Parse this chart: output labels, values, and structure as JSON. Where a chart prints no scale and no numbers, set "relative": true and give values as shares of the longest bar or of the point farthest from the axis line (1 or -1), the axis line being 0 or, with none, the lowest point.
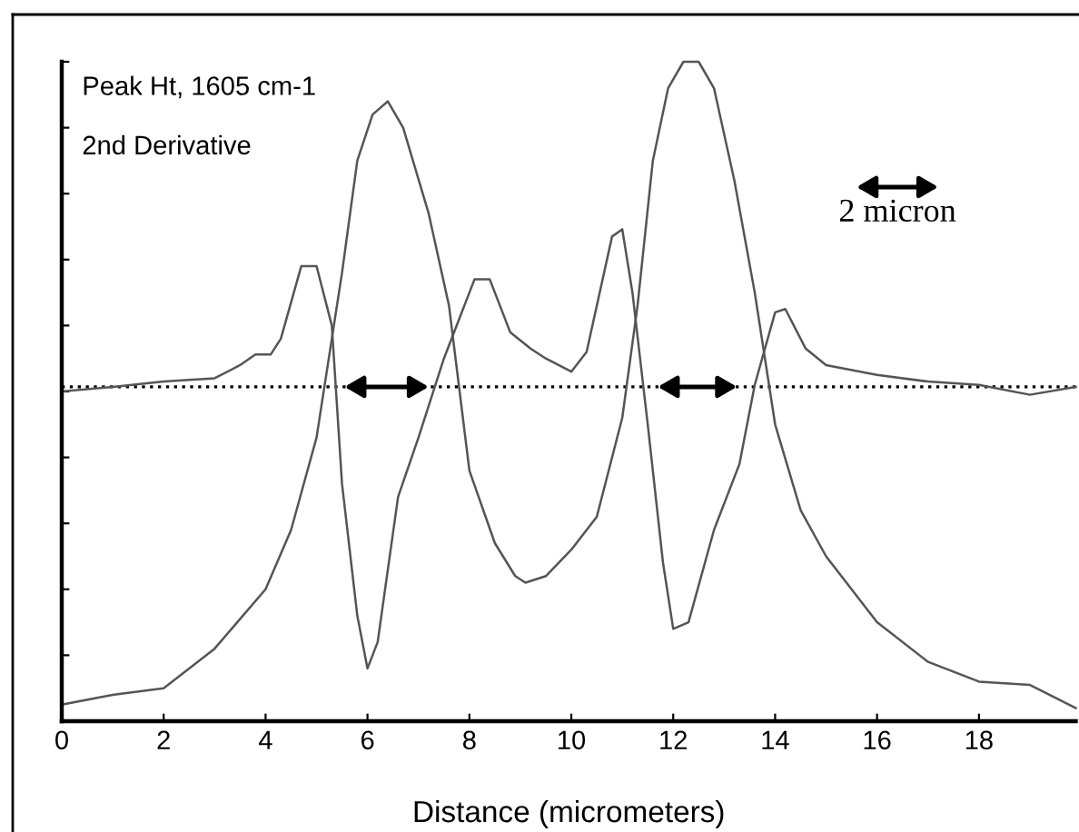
{
  "chart_data": {
    "type": "line",
    "relative": true,
    "xlabel": "Distance (micrometers)",
    "annotations": [
      "Peak Ht, 1605 cm-1",
      "2nd Derivative",
      "2 micron"
    ],
    "xlim": [
      0,
      19.9
    ],
    "xticks": [
      0,
      2,
      4,
      6,
      8,
      10,
      12,
      14,
      16,
      18
    ],
    "tick_labels": "x",
    "grid": false,
    "legend": false,
    "ref_lines": [
      {
        "axis": "y",
        "value": 0.507,
        "line_style": "dotted",
        "color": "#000000"
      }
    ],
    "series": [
      {
        "color": "#555555",
        "x": [
          0,
          1,
          2,
          3,
          4,
          4.5,
          5,
          5.5,
          5.8,
          6.1,
          6.4,
          6.7,
          7.2,
          7.6,
          8,
          8.5,
          8.9,
          9.1,
          9.5,
          10,
          10.5,
          11,
          11.3,
          11.6,
          11.9,
          12.2,
          12.5,
          12.8,
          13.2,
          13.6,
          14,
          14.5,
          15,
          16,
          17,
          18,
          19,
          19.9
        ],
        "values": [
          0.025,
          0.04,
          0.05,
          0.11,
          0.2,
          0.29,
          0.43,
          0.68,
          0.85,
          0.92,
          0.94,
          0.9,
          0.77,
          0.63,
          0.38,
          0.27,
          0.22,
          0.21,
          0.22,
          0.26,
          0.31,
          0.46,
          0.63,
          0.85,
          0.96,
          1.0,
          1.0,
          0.96,
          0.82,
          0.65,
          0.45,
          0.32,
          0.25,
          0.15,
          0.09,
          0.06,
          0.055,
          0.02
        ]
      },
      {
        "color": "#555555",
        "x": [
          0,
          1,
          2,
          3,
          3.5,
          3.8,
          4.1,
          4.3,
          4.7,
          5.0,
          5.3,
          5.5,
          5.8,
          6.0,
          6.2,
          6.6,
          7.0,
          7.5,
          7.9,
          8.1,
          8.4,
          8.8,
          9.2,
          9.5,
          10,
          10.3,
          10.8,
          11.0,
          11.2,
          11.5,
          11.8,
          12.0,
          12.3,
          12.8,
          13.3,
          13.6,
          14.0,
          14.2,
          14.6,
          15,
          16,
          17,
          18,
          19,
          19.9
        ],
        "values": [
          0.5,
          0.507,
          0.515,
          0.52,
          0.54,
          0.556,
          0.556,
          0.58,
          0.69,
          0.69,
          0.6,
          0.36,
          0.16,
          0.08,
          0.12,
          0.34,
          0.43,
          0.55,
          0.63,
          0.67,
          0.67,
          0.59,
          0.565,
          0.55,
          0.53,
          0.56,
          0.735,
          0.746,
          0.65,
          0.45,
          0.24,
          0.14,
          0.15,
          0.29,
          0.39,
          0.51,
          0.62,
          0.625,
          0.565,
          0.54,
          0.525,
          0.515,
          0.51,
          0.495,
          0.507
        ]
      }
    ]
  }
}
